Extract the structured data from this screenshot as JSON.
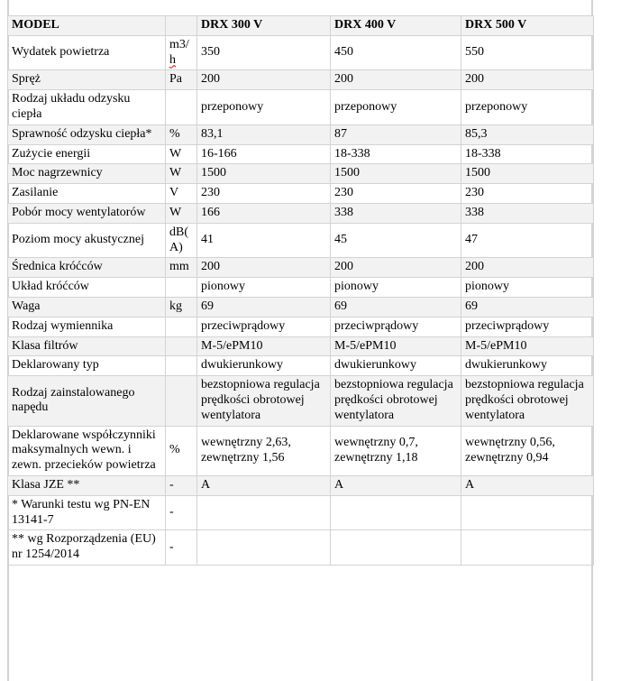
{
  "colors": {
    "row_shade": "#f2f2f2",
    "table_border": "#d3d3d3",
    "spellcheck_underline": "#e00000",
    "text": "#000000",
    "background": "#ffffff"
  },
  "table": {
    "columns": [
      "MODEL",
      "",
      "DRX 300 V",
      "DRX 400 V",
      "DRX 500 V"
    ],
    "rows": [
      {
        "label": "Wydatek powietrza",
        "unit": "m3/\nh",
        "unit_squiggle": "h",
        "values": [
          "350",
          "450",
          "550"
        ],
        "shaded": false
      },
      {
        "label": "Spręż",
        "unit": "Pa",
        "values": [
          "200",
          "200",
          "200"
        ],
        "shaded": true
      },
      {
        "label": "Rodzaj układu odzysku ciepła",
        "unit": "",
        "values": [
          "przeponowy",
          "przeponowy",
          "przeponowy"
        ],
        "shaded": false
      },
      {
        "label": "Sprawność odzysku ciepła*",
        "unit": "%",
        "values": [
          "83,1",
          "87",
          "85,3"
        ],
        "shaded": true
      },
      {
        "label": "Zużycie energii",
        "unit": "W",
        "values": [
          "16-166",
          "18-338",
          "18-338"
        ],
        "shaded": false
      },
      {
        "label": "Moc nagrzewnicy",
        "unit": "W",
        "values": [
          "1500",
          "1500",
          "1500"
        ],
        "shaded": true
      },
      {
        "label": "Zasilanie",
        "unit": "V",
        "values": [
          "230",
          "230",
          "230"
        ],
        "shaded": false
      },
      {
        "label": "Pobór mocy wentylatorów",
        "unit": "W",
        "values": [
          "166",
          "338",
          "338"
        ],
        "shaded": true
      },
      {
        "label": "Poziom mocy akustycznej",
        "unit": "dB(\nA)",
        "values": [
          "41",
          "45",
          "47"
        ],
        "shaded": false
      },
      {
        "label": "Średnica króćców",
        "unit": "mm",
        "values": [
          "200",
          "200",
          "200"
        ],
        "shaded": true
      },
      {
        "label": "Układ króćców",
        "unit": "",
        "values": [
          "pionowy",
          "pionowy",
          "pionowy"
        ],
        "shaded": false
      },
      {
        "label": "Waga",
        "unit": "kg",
        "values": [
          "69",
          "69",
          "69"
        ],
        "shaded": true
      },
      {
        "label": "Rodzaj wymiennika",
        "unit": "",
        "values": [
          "przeciwprądowy",
          "przeciwprądowy",
          "przeciwprądowy"
        ],
        "shaded": false
      },
      {
        "label": "Klasa filtrów",
        "unit": "",
        "values": [
          "M-5/ePM10",
          "M-5/ePM10",
          "M-5/ePM10"
        ],
        "shaded": true
      },
      {
        "label": "Deklarowany typ",
        "unit": "",
        "values": [
          "dwukierunkowy",
          "dwukierunkowy",
          "dwukierunkowy"
        ],
        "shaded": false
      },
      {
        "label": "Rodzaj zainstalowanego napędu",
        "unit": "",
        "values": [
          "bezstopniowa regulacja prędkości obrotowej wentylatora",
          "bezstopniowa regulacja prędkości obrotowej wentylatora",
          "bezstopniowa regulacja prędkości obrotowej wentylatora"
        ],
        "shaded": true
      },
      {
        "label": "Deklarowane współczynniki maksymalnych wewn. i zewn. przecieków powietrza",
        "unit": "%",
        "values": [
          "wewnętrzny 2,63, zewnętrzny 1,56",
          "wewnętrzny 0,7, zewnętrzny 1,18",
          "wewnętrzny 0,56, zewnętrzny 0,94"
        ],
        "shaded": false
      },
      {
        "label": "Klasa JZE **",
        "unit": "-",
        "values": [
          "A",
          "A",
          "A"
        ],
        "shaded": true
      },
      {
        "label": "* Warunki testu wg PN-EN 13141-7",
        "unit": "-",
        "values": [
          "",
          "",
          ""
        ],
        "shaded": false
      },
      {
        "label": "** wg Rozporządzenia (EU) nr 1254/2014",
        "unit": "-",
        "values": [
          "",
          "",
          ""
        ],
        "shaded": false
      }
    ]
  }
}
